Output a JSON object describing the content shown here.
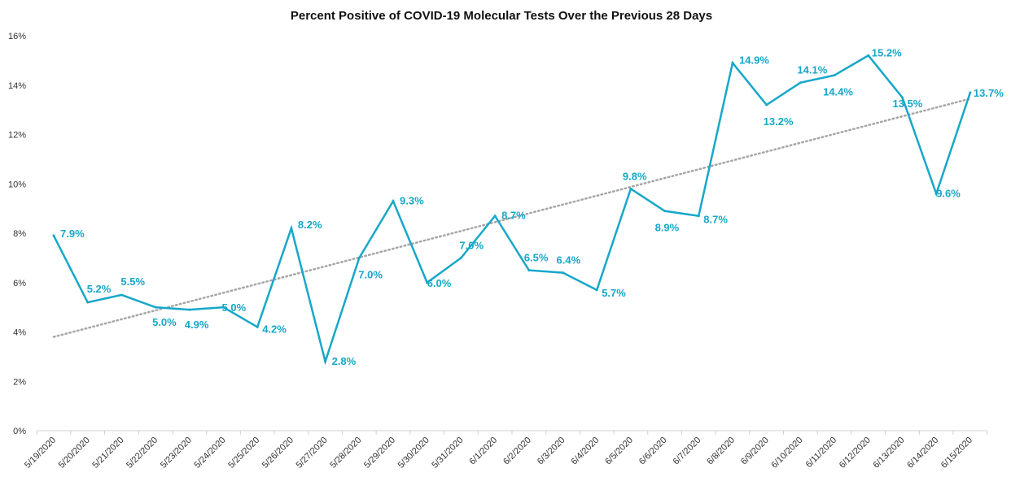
{
  "chart_data": {
    "type": "line",
    "title": "Percent Positive of COVID-19 Molecular Tests Over the Previous 28 Days",
    "xlabel": "",
    "ylabel": "",
    "ylim": [
      0,
      16
    ],
    "y_ticks": [
      "0%",
      "2%",
      "4%",
      "6%",
      "8%",
      "10%",
      "12%",
      "14%",
      "16%"
    ],
    "grid": false,
    "categories": [
      "5/19/2020",
      "5/20/2020",
      "5/21/2020",
      "5/22/2020",
      "5/23/2020",
      "5/24/2020",
      "5/25/2020",
      "5/26/2020",
      "5/27/2020",
      "5/28/2020",
      "5/29/2020",
      "5/30/2020",
      "5/31/2020",
      "6/1/2020",
      "6/2/2020",
      "6/3/2020",
      "6/4/2020",
      "6/5/2020",
      "6/6/2020",
      "6/7/2020",
      "6/8/2020",
      "6/9/2020",
      "6/10/2020",
      "6/11/2020",
      "6/12/2020",
      "6/13/2020",
      "6/14/2020",
      "6/15/2020"
    ],
    "series": [
      {
        "values": [
          7.9,
          5.2,
          5.5,
          5.0,
          4.9,
          5.0,
          4.2,
          8.2,
          2.8,
          7.0,
          9.3,
          6.0,
          7.0,
          8.7,
          6.5,
          6.4,
          5.7,
          9.8,
          8.9,
          8.7,
          14.9,
          13.2,
          14.1,
          14.4,
          15.2,
          13.5,
          9.6,
          13.7
        ],
        "labels": [
          "7.9%",
          "5.2%",
          "5.5%",
          "5.0%",
          "4.9%",
          "5.0%",
          "4.2%",
          "8.2%",
          "2.8%",
          "7.0%",
          "9.3%",
          "6.0%",
          "7.0%",
          "8.7%",
          "6.5%",
          "6.4%",
          "5.7%",
          "9.8%",
          "8.9%",
          "8.7%",
          "14.9%",
          "13.2%",
          "14.1%",
          "14.4%",
          "15.2%",
          "13.5%",
          "9.6%",
          "13.7%"
        ],
        "color": "#17a7c9"
      }
    ],
    "trendline": {
      "style": "dotted",
      "color": "#a6a6a6",
      "start": 3.8,
      "end": 13.45
    }
  }
}
